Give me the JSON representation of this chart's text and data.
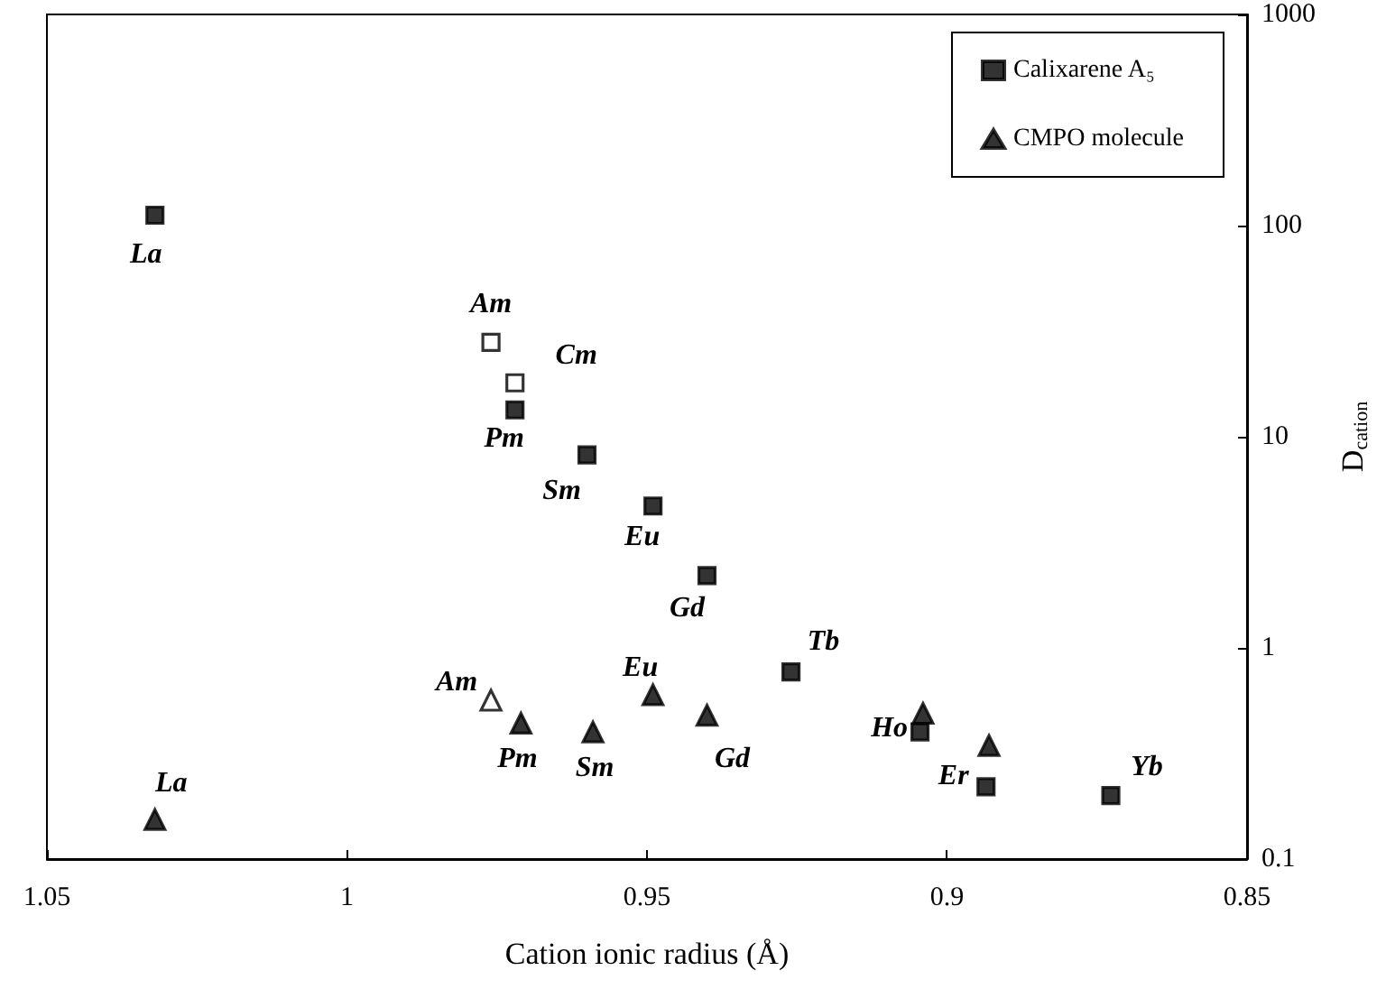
{
  "chart_data": {
    "type": "scatter",
    "xlabel": "Cation ionic radius (Å)",
    "ylabel": "D$_{cation}$",
    "xlim": [
      1.05,
      0.85
    ],
    "xticks": [
      1.05,
      1,
      0.95,
      0.9,
      0.85
    ],
    "ylim": [
      0.1,
      1000
    ],
    "yticks": [
      0.1,
      1,
      10,
      100,
      1000
    ],
    "log": "y",
    "grid": false,
    "legend": "top right",
    "series": [
      {
        "name": "Calixarene A₅",
        "color": "#000000",
        "marker": "square",
        "x": [
          1.032,
          0.972,
          0.96,
          0.949,
          0.94,
          0.926,
          0.9045,
          0.8935,
          0.8727
        ],
        "values": [
          112,
          13.4,
          8.2,
          4.7,
          2.2,
          0.77,
          0.4,
          0.22,
          0.2
        ]
      },
      {
        "color": "#ffffff",
        "marker": "square",
        "x": [
          0.976,
          0.972
        ],
        "values": [
          28,
          18
        ]
      },
      {
        "name": "CMPO molecule",
        "color": "#000000",
        "marker": "triangle",
        "x": [
          1.032,
          0.971,
          0.959,
          0.949,
          0.94,
          0.904,
          0.893
        ],
        "values": [
          0.154,
          0.44,
          0.4,
          0.6,
          0.48,
          0.49,
          0.345
        ]
      },
      {
        "color": "#ffffff",
        "marker": "triangle",
        "x": [
          0.976
        ],
        "values": [
          0.565
        ]
      }
    ],
    "annotations": [
      {
        "text": "La",
        "x": 1.032,
        "y": 112
      },
      {
        "text": "Am",
        "x": 0.976,
        "y": 28
      },
      {
        "text": "Cm",
        "x": 0.972,
        "y": 18
      },
      {
        "text": "Pm",
        "x": 0.972,
        "y": 13.4
      },
      {
        "text": "Sm",
        "x": 0.96,
        "y": 8.2
      },
      {
        "text": "Eu",
        "x": 0.949,
        "y": 4.7
      },
      {
        "text": "Gd",
        "x": 0.94,
        "y": 2.2
      },
      {
        "text": "Tb",
        "x": 0.926,
        "y": 0.77
      },
      {
        "text": "Ho",
        "x": 0.9045,
        "y": 0.4
      },
      {
        "text": "Er",
        "x": 0.8935,
        "y": 0.22
      },
      {
        "text": "Yb",
        "x": 0.8727,
        "y": 0.2
      },
      {
        "text": "Am",
        "x": 0.976,
        "y": 0.565
      },
      {
        "text": "La",
        "x": 1.032,
        "y": 0.154
      },
      {
        "text": "Pm",
        "x": 0.971,
        "y": 0.44
      },
      {
        "text": "Sm",
        "x": 0.959,
        "y": 0.4
      },
      {
        "text": "Eu",
        "x": 0.949,
        "y": 0.6
      },
      {
        "text": "Gd",
        "x": 0.94,
        "y": 0.48
      }
    ]
  }
}
